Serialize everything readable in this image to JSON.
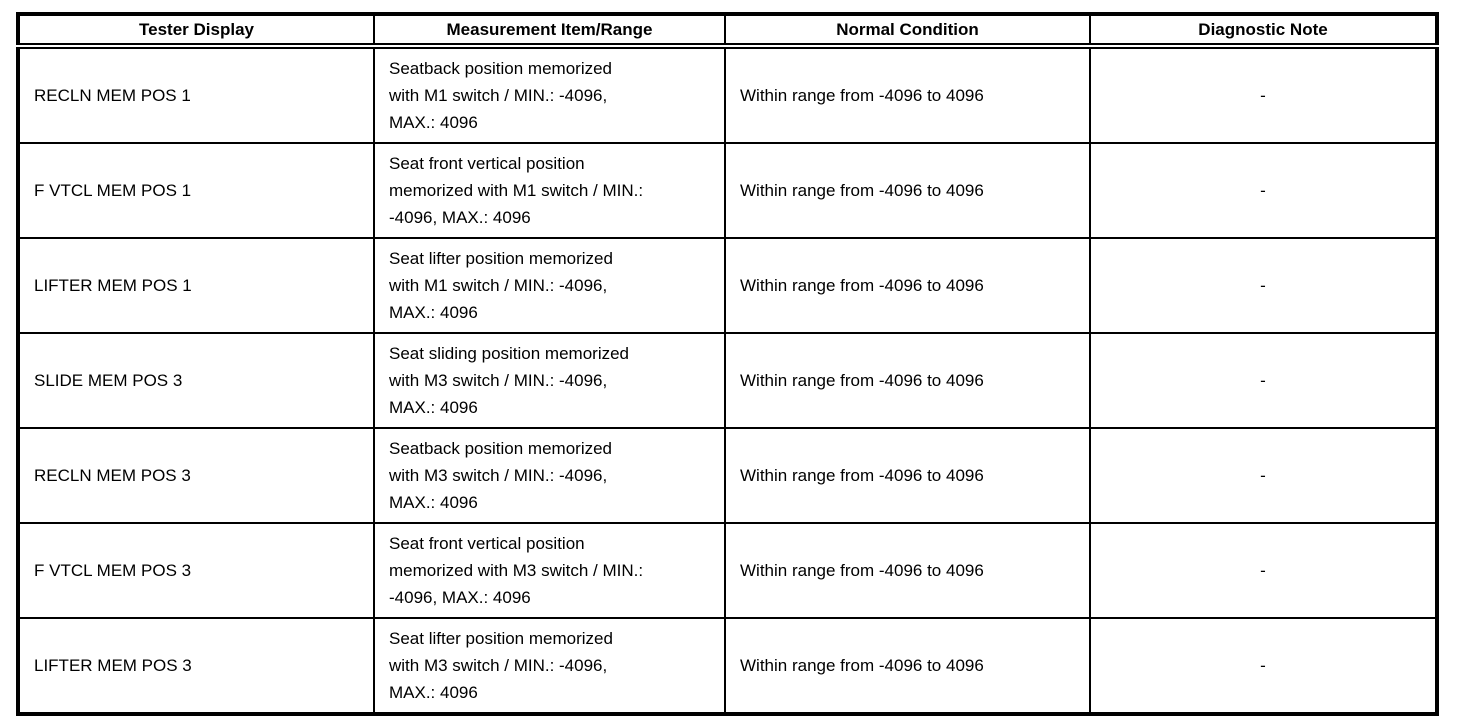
{
  "table": {
    "headers": [
      {
        "label": "Tester Display"
      },
      {
        "label": "Measurement Item/Range"
      },
      {
        "label": "Normal Condition"
      },
      {
        "label": "Diagnostic Note"
      }
    ],
    "rows": [
      {
        "tester_display": "RECLN MEM POS 1",
        "measurement_item_range": "Seatback position memorized\nwith M1 switch / MIN.: -4096,\nMAX.: 4096",
        "normal_condition": "Within range from -4096 to 4096",
        "diagnostic_note": "-"
      },
      {
        "tester_display": "F VTCL MEM POS 1",
        "measurement_item_range": "Seat front vertical position\nmemorized with M1 switch / MIN.:\n-4096, MAX.: 4096",
        "normal_condition": "Within range from -4096 to 4096",
        "diagnostic_note": "-"
      },
      {
        "tester_display": "LIFTER MEM POS 1",
        "measurement_item_range": "Seat lifter position memorized\nwith M1 switch / MIN.: -4096,\nMAX.: 4096",
        "normal_condition": "Within range from -4096 to 4096",
        "diagnostic_note": "-"
      },
      {
        "tester_display": "SLIDE MEM POS 3",
        "measurement_item_range": "Seat sliding position memorized\nwith M3 switch / MIN.: -4096,\nMAX.: 4096",
        "normal_condition": "Within range from -4096 to 4096",
        "diagnostic_note": "-"
      },
      {
        "tester_display": "RECLN MEM POS 3",
        "measurement_item_range": "Seatback position memorized\nwith M3 switch / MIN.: -4096,\nMAX.: 4096",
        "normal_condition": "Within range from -4096 to 4096",
        "diagnostic_note": "-"
      },
      {
        "tester_display": "F VTCL MEM POS 3",
        "measurement_item_range": "Seat front vertical position\nmemorized with M3 switch / MIN.:\n-4096, MAX.: 4096",
        "normal_condition": "Within range from -4096 to 4096",
        "diagnostic_note": "-"
      },
      {
        "tester_display": "LIFTER MEM POS 3",
        "measurement_item_range": "Seat lifter position memorized\nwith M3 switch / MIN.: -4096,\nMAX.: 4096",
        "normal_condition": "Within range from -4096 to 4096",
        "diagnostic_note": "-"
      }
    ],
    "colors": {
      "border": "#000000",
      "text": "#000000",
      "background": "#ffffff"
    }
  }
}
